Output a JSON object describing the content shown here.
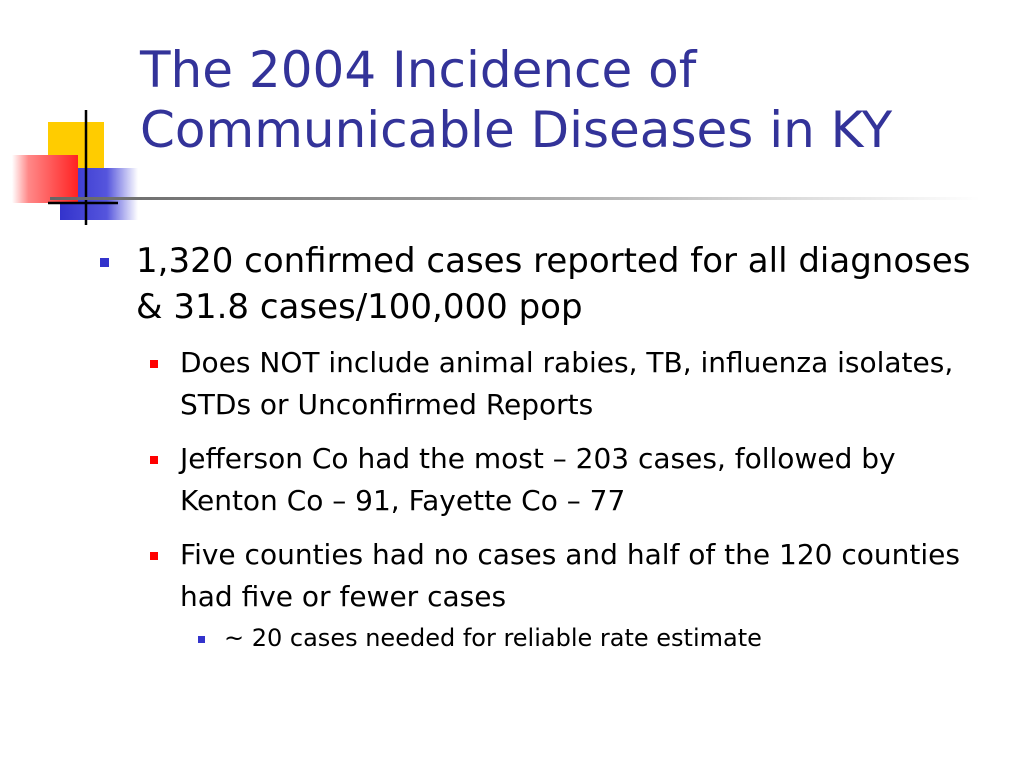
{
  "slide": {
    "title_line1": "The 2004 Incidence of",
    "title_line2": "Communicable Diseases in KY",
    "bullets": [
      {
        "text": "1,320 confirmed cases reported for all diagnoses & 31.8 cases/100,000 pop",
        "sub": [
          {
            "text": "Does NOT include animal rabies, TB, influenza isolates, STDs or Unconfirmed Reports"
          },
          {
            "text": "Jefferson Co had the most – 203 cases, followed by Kenton Co – 91, Fayette Co – 77"
          },
          {
            "text": "Five counties had no cases and half of the 120 counties had five or fewer cases",
            "sub": [
              {
                "text": "~ 20 cases needed for reliable rate estimate"
              }
            ]
          }
        ]
      }
    ]
  },
  "colors": {
    "title": "#333399",
    "bullet_level1": "#3333cc",
    "bullet_level2": "#ff0000",
    "bullet_level3": "#3333cc",
    "logo_yellow": "#ffcc00",
    "logo_blue": "#3333cc",
    "logo_red": "#ff3333"
  }
}
